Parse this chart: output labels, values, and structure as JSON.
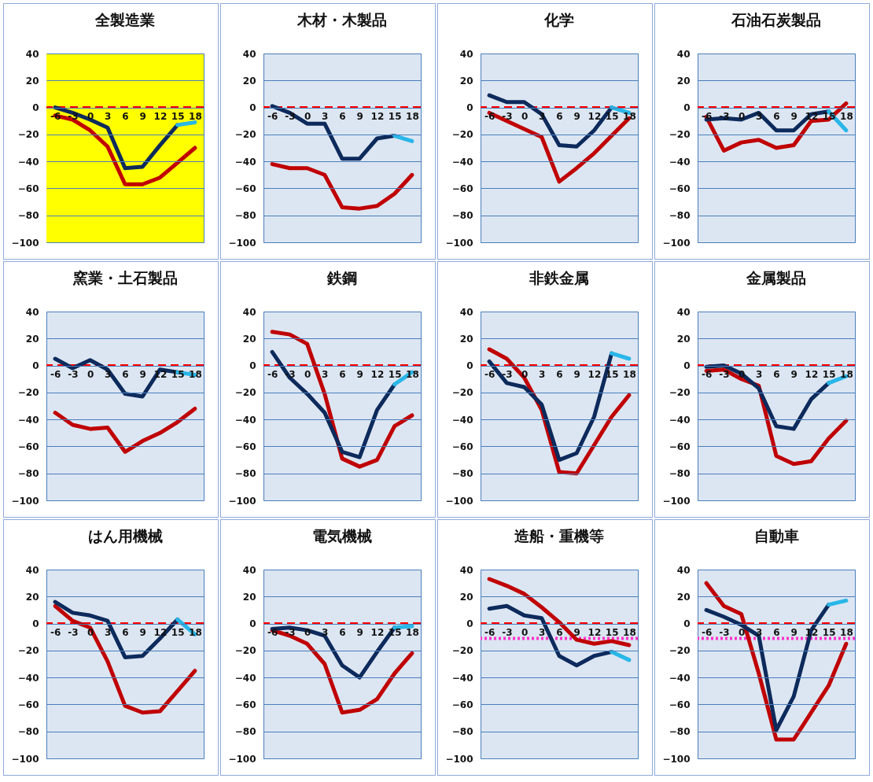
{
  "chart_data": [
    {
      "type": "line",
      "title": "全製造業",
      "categories": [
        "-6",
        "-3",
        "0",
        "3",
        "6",
        "9",
        "12",
        "15",
        "18"
      ],
      "ylim": [
        -100,
        40
      ],
      "yticks": [
        -100,
        -80,
        -60,
        -40,
        -20,
        0,
        20,
        40
      ],
      "grid": "y",
      "bands": [
        {
          "axis": "y",
          "from": -100,
          "to": 40,
          "color": "#ffff00"
        }
      ],
      "ref_lines": [
        {
          "axis": "y",
          "value": 0,
          "color": "#ff0000",
          "line_style": "dashed"
        }
      ],
      "series": [
        {
          "color": "#c00000",
          "values": [
            -6,
            -9,
            -17,
            -29,
            -57,
            -57,
            -52,
            -41,
            -30
          ]
        },
        {
          "color": "#0d2a5c",
          "values": [
            0,
            -4,
            -9,
            -15,
            -45,
            -44,
            -28,
            -13,
            null
          ]
        },
        {
          "color": "#29b6e8",
          "values": [
            null,
            null,
            null,
            null,
            null,
            null,
            null,
            -13,
            -11
          ]
        }
      ]
    },
    {
      "type": "line",
      "title": "木材・木製品",
      "categories": [
        "-6",
        "-3",
        "0",
        "3",
        "6",
        "9",
        "12",
        "15",
        "18"
      ],
      "ylim": [
        -100,
        40
      ],
      "yticks": [
        -100,
        -80,
        -60,
        -40,
        -20,
        0,
        20,
        40
      ],
      "grid": "y",
      "ref_lines": [
        {
          "axis": "y",
          "value": 0,
          "color": "#ff0000",
          "line_style": "dashed"
        }
      ],
      "series": [
        {
          "color": "#c00000",
          "values": [
            -42,
            -45,
            -45,
            -50,
            -74,
            -75,
            -73,
            -64,
            -50
          ]
        },
        {
          "color": "#0d2a5c",
          "values": [
            1,
            -4,
            -12,
            -12,
            -38,
            -38,
            -23,
            -21,
            null
          ]
        },
        {
          "color": "#29b6e8",
          "values": [
            null,
            null,
            null,
            null,
            null,
            null,
            null,
            -21,
            -25
          ]
        }
      ]
    },
    {
      "type": "line",
      "title": "化学",
      "categories": [
        "-6",
        "-3",
        "0",
        "3",
        "6",
        "9",
        "12",
        "15",
        "18"
      ],
      "ylim": [
        -100,
        40
      ],
      "yticks": [
        -100,
        -80,
        -60,
        -40,
        -20,
        0,
        20,
        40
      ],
      "grid": "y",
      "ref_lines": [
        {
          "axis": "y",
          "value": 0,
          "color": "#ff0000",
          "line_style": "dashed"
        }
      ],
      "series": [
        {
          "color": "#c00000",
          "values": [
            -4,
            -10,
            -16,
            -22,
            -55,
            -45,
            -34,
            -21,
            -8
          ]
        },
        {
          "color": "#0d2a5c",
          "values": [
            9,
            4,
            4,
            -5,
            -28,
            -29,
            -17,
            0,
            null
          ]
        },
        {
          "color": "#29b6e8",
          "values": [
            null,
            null,
            null,
            null,
            null,
            null,
            null,
            0,
            -4
          ]
        }
      ]
    },
    {
      "type": "line",
      "title": "石油石炭製品",
      "categories": [
        "-6",
        "-3",
        "0",
        "3",
        "6",
        "9",
        "12",
        "15",
        "18"
      ],
      "ylim": [
        -100,
        40
      ],
      "yticks": [
        -100,
        -80,
        -60,
        -40,
        -20,
        0,
        20,
        40
      ],
      "grid": "y",
      "ref_lines": [
        {
          "axis": "y",
          "value": 0,
          "color": "#ff0000",
          "line_style": "dashed"
        }
      ],
      "series": [
        {
          "color": "#c00000",
          "values": [
            -7,
            -32,
            -26,
            -24,
            -30,
            -28,
            -10,
            -9,
            3
          ]
        },
        {
          "color": "#0d2a5c",
          "values": [
            -9,
            -8,
            -9,
            -4,
            -17,
            -17,
            -5,
            -3,
            null
          ]
        },
        {
          "color": "#29b6e8",
          "values": [
            null,
            null,
            null,
            null,
            null,
            null,
            null,
            -3,
            -17
          ]
        }
      ]
    },
    {
      "type": "line",
      "title": "窯業・土石製品",
      "categories": [
        "-6",
        "-3",
        "0",
        "3",
        "6",
        "9",
        "12",
        "15",
        "18"
      ],
      "ylim": [
        -100,
        40
      ],
      "yticks": [
        -100,
        -80,
        -60,
        -40,
        -20,
        0,
        20,
        40
      ],
      "grid": "y",
      "ref_lines": [
        {
          "axis": "y",
          "value": 0,
          "color": "#ff0000",
          "line_style": "dashed"
        }
      ],
      "series": [
        {
          "color": "#c00000",
          "values": [
            -35,
            -44,
            -47,
            -46,
            -64,
            -56,
            -50,
            -42,
            -32
          ]
        },
        {
          "color": "#0d2a5c",
          "values": [
            5,
            -2,
            4,
            -3,
            -21,
            -23,
            -3,
            -5,
            null
          ]
        },
        {
          "color": "#29b6e8",
          "values": [
            null,
            null,
            null,
            null,
            null,
            null,
            null,
            -5,
            -7
          ]
        }
      ]
    },
    {
      "type": "line",
      "title": "鉄鋼",
      "categories": [
        "-6",
        "-3",
        "0",
        "3",
        "6",
        "9",
        "12",
        "15",
        "18"
      ],
      "ylim": [
        -100,
        40
      ],
      "yticks": [
        -100,
        -80,
        -60,
        -40,
        -20,
        0,
        20,
        40
      ],
      "grid": "y",
      "ref_lines": [
        {
          "axis": "y",
          "value": 0,
          "color": "#ff0000",
          "line_style": "dashed"
        }
      ],
      "series": [
        {
          "color": "#c00000",
          "values": [
            25,
            23,
            16,
            -21,
            -69,
            -75,
            -70,
            -45,
            -37
          ]
        },
        {
          "color": "#0d2a5c",
          "values": [
            10,
            -9,
            -21,
            -35,
            -64,
            -68,
            -33,
            -14,
            null
          ]
        },
        {
          "color": "#29b6e8",
          "values": [
            null,
            null,
            null,
            null,
            null,
            null,
            null,
            -14,
            -5
          ]
        }
      ]
    },
    {
      "type": "line",
      "title": "非鉄金属",
      "categories": [
        "-6",
        "-3",
        "0",
        "3",
        "6",
        "9",
        "12",
        "15",
        "18"
      ],
      "ylim": [
        -100,
        40
      ],
      "yticks": [
        -100,
        -80,
        -60,
        -40,
        -20,
        0,
        20,
        40
      ],
      "grid": "y",
      "ref_lines": [
        {
          "axis": "y",
          "value": 0,
          "color": "#ff0000",
          "line_style": "dashed"
        }
      ],
      "series": [
        {
          "color": "#c00000",
          "values": [
            12,
            5,
            -9,
            -33,
            -79,
            -80,
            -59,
            -38,
            -22
          ]
        },
        {
          "color": "#0d2a5c",
          "values": [
            3,
            -13,
            -16,
            -29,
            -70,
            -65,
            -38,
            9,
            null
          ]
        },
        {
          "color": "#29b6e8",
          "values": [
            null,
            null,
            null,
            null,
            null,
            null,
            null,
            9,
            5
          ]
        }
      ]
    },
    {
      "type": "line",
      "title": "金属製品",
      "categories": [
        "-6",
        "-3",
        "0",
        "3",
        "6",
        "9",
        "12",
        "15",
        "18"
      ],
      "ylim": [
        -100,
        40
      ],
      "yticks": [
        -100,
        -80,
        -60,
        -40,
        -20,
        0,
        20,
        40
      ],
      "grid": "y",
      "ref_lines": [
        {
          "axis": "y",
          "value": 0,
          "color": "#ff0000",
          "line_style": "dashed"
        }
      ],
      "series": [
        {
          "color": "#c00000",
          "values": [
            -4,
            -3,
            -10,
            -15,
            -67,
            -73,
            -71,
            -54,
            -41
          ]
        },
        {
          "color": "#0d2a5c",
          "values": [
            -1,
            0,
            -6,
            -17,
            -45,
            -47,
            -25,
            -13,
            null
          ]
        },
        {
          "color": "#29b6e8",
          "values": [
            null,
            null,
            null,
            null,
            null,
            null,
            null,
            -13,
            -8
          ]
        }
      ]
    },
    {
      "type": "line",
      "title": "はん用機械",
      "categories": [
        "-6",
        "-3",
        "0",
        "3",
        "6",
        "9",
        "12",
        "15",
        "18"
      ],
      "ylim": [
        -100,
        40
      ],
      "yticks": [
        -100,
        -80,
        -60,
        -40,
        -20,
        0,
        20,
        40
      ],
      "grid": "y",
      "ref_lines": [
        {
          "axis": "y",
          "value": 0,
          "color": "#ff0000",
          "line_style": "dashed"
        }
      ],
      "series": [
        {
          "color": "#c00000",
          "values": [
            13,
            2,
            -3,
            -28,
            -61,
            -66,
            -65,
            -50,
            -35
          ]
        },
        {
          "color": "#0d2a5c",
          "values": [
            16,
            8,
            6,
            2,
            -25,
            -24,
            -11,
            3,
            null
          ]
        },
        {
          "color": "#29b6e8",
          "values": [
            null,
            null,
            null,
            null,
            null,
            null,
            null,
            3,
            -8
          ]
        }
      ]
    },
    {
      "type": "line",
      "title": "電気機械",
      "categories": [
        "-6",
        "-3",
        "0",
        "3",
        "6",
        "9",
        "12",
        "15",
        "18"
      ],
      "ylim": [
        -100,
        40
      ],
      "yticks": [
        -100,
        -80,
        -60,
        -40,
        -20,
        0,
        20,
        40
      ],
      "grid": "y",
      "ref_lines": [
        {
          "axis": "y",
          "value": 0,
          "color": "#ff0000",
          "line_style": "dashed"
        }
      ],
      "series": [
        {
          "color": "#c00000",
          "values": [
            -5,
            -9,
            -15,
            -30,
            -66,
            -64,
            -56,
            -37,
            -22
          ]
        },
        {
          "color": "#0d2a5c",
          "values": [
            -4,
            -3,
            -5,
            -9,
            -31,
            -40,
            -21,
            -3,
            null
          ]
        },
        {
          "color": "#29b6e8",
          "values": [
            null,
            null,
            null,
            null,
            null,
            null,
            null,
            -3,
            -2
          ]
        }
      ]
    },
    {
      "type": "line",
      "title": "造船・重機等",
      "categories": [
        "-6",
        "-3",
        "0",
        "3",
        "6",
        "9",
        "12",
        "15",
        "18"
      ],
      "ylim": [
        -100,
        40
      ],
      "yticks": [
        -100,
        -80,
        -60,
        -40,
        -20,
        0,
        20,
        40
      ],
      "grid": "y",
      "ref_lines": [
        {
          "axis": "y",
          "value": 0,
          "color": "#ff0000",
          "line_style": "dashed"
        },
        {
          "axis": "y",
          "value": -11,
          "color": "#ff33cc",
          "line_style": "dotted"
        }
      ],
      "series": [
        {
          "color": "#c00000",
          "values": [
            33,
            28,
            22,
            12,
            1,
            -12,
            -15,
            -13,
            -16
          ]
        },
        {
          "color": "#0d2a5c",
          "values": [
            11,
            13,
            6,
            4,
            -24,
            -31,
            -24,
            -21,
            null
          ]
        },
        {
          "color": "#29b6e8",
          "values": [
            null,
            null,
            null,
            null,
            null,
            null,
            null,
            -21,
            -27
          ]
        }
      ]
    },
    {
      "type": "line",
      "title": "自動車",
      "categories": [
        "-6",
        "-3",
        "0",
        "3",
        "6",
        "9",
        "12",
        "15",
        "18"
      ],
      "ylim": [
        -100,
        40
      ],
      "yticks": [
        -100,
        -80,
        -60,
        -40,
        -20,
        0,
        20,
        40
      ],
      "grid": "y",
      "ref_lines": [
        {
          "axis": "y",
          "value": 0,
          "color": "#ff0000",
          "line_style": "dashed"
        },
        {
          "axis": "y",
          "value": -11,
          "color": "#ff33cc",
          "line_style": "dotted"
        }
      ],
      "series": [
        {
          "color": "#c00000",
          "values": [
            30,
            13,
            7,
            -37,
            -86,
            -86,
            -66,
            -46,
            -15
          ]
        },
        {
          "color": "#0d2a5c",
          "values": [
            10,
            5,
            -1,
            -9,
            -79,
            -54,
            -5,
            14,
            null
          ]
        },
        {
          "color": "#29b6e8",
          "values": [
            null,
            null,
            null,
            null,
            null,
            null,
            null,
            14,
            17
          ]
        }
      ]
    }
  ]
}
